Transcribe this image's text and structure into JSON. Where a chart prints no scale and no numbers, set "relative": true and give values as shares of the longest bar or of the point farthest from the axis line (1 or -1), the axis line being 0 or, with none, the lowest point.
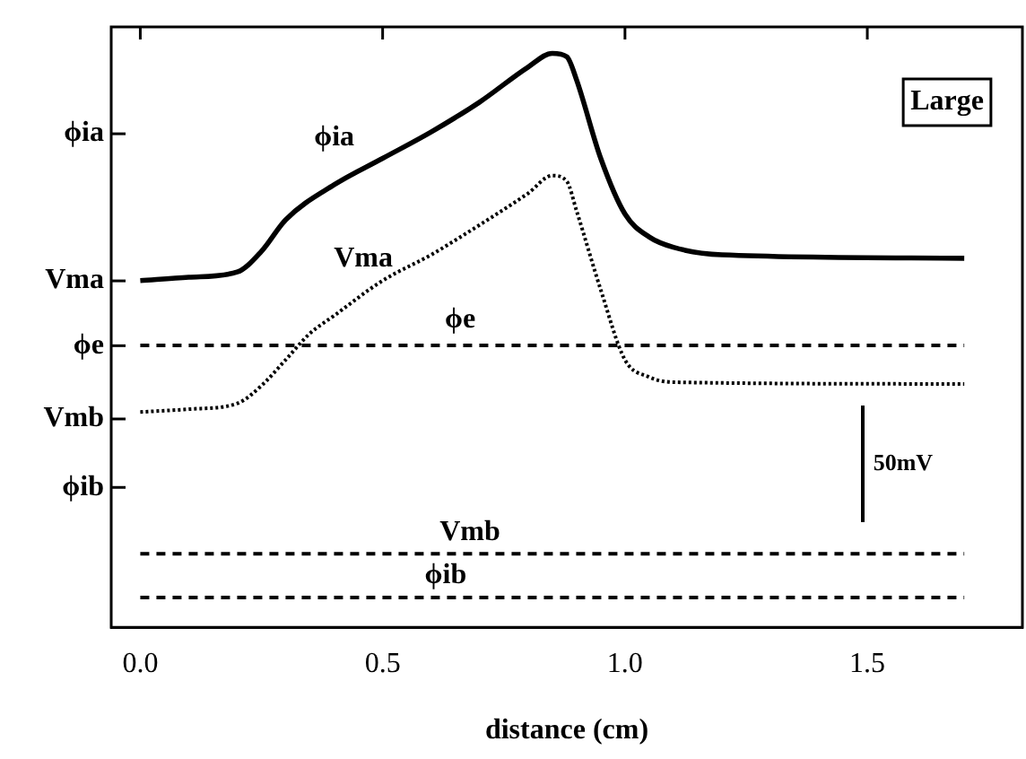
{
  "chart_data": {
    "type": "line",
    "relative": true,
    "xlabel": "distance (cm)",
    "xlim": [
      -0.06,
      1.82
    ],
    "xticks": [
      {
        "value": 0,
        "label": "0.0"
      },
      {
        "value": 0.5,
        "label": "0.5"
      },
      {
        "value": 1,
        "label": "1.0"
      },
      {
        "value": 1.5,
        "label": "1.5"
      }
    ],
    "grid": false,
    "legend": false,
    "marker": "none",
    "series": [
      {
        "name": "ϕia",
        "color": "#000000",
        "line_style": "solid",
        "x": [
          0,
          0.1,
          0.2,
          0.25,
          0.3,
          0.4,
          0.5,
          0.6,
          0.7,
          0.8,
          0.85,
          0.88,
          0.9,
          0.95,
          1.0,
          1.05,
          1.1,
          1.2,
          1.7
        ],
        "values": [
          0.604,
          0.61,
          0.619,
          0.655,
          0.71,
          0.771,
          0.817,
          0.863,
          0.915,
          0.976,
          1.0,
          0.994,
          0.954,
          0.817,
          0.72,
          0.68,
          0.662,
          0.649,
          0.643
        ]
      },
      {
        "name": "Vma",
        "color": "#000000",
        "line_style": "dotted",
        "x": [
          0,
          0.1,
          0.2,
          0.25,
          0.3,
          0.35,
          0.4,
          0.5,
          0.6,
          0.7,
          0.8,
          0.85,
          0.88,
          0.9,
          0.95,
          1.0,
          1.05,
          1.1,
          1.7
        ],
        "values": [
          0.375,
          0.38,
          0.39,
          0.421,
          0.466,
          0.512,
          0.543,
          0.604,
          0.649,
          0.701,
          0.756,
          0.787,
          0.777,
          0.726,
          0.588,
          0.466,
          0.436,
          0.427,
          0.424
        ]
      },
      {
        "name": "ϕe",
        "color": "#000000",
        "line_style": "dashed",
        "x": [
          0,
          1.7
        ],
        "values": [
          0.491,
          0.491
        ]
      },
      {
        "name": "Vmb",
        "color": "#000000",
        "line_style": "dashed",
        "x": [
          0,
          1.7
        ],
        "values": [
          0.128,
          0.128
        ]
      },
      {
        "name": "ϕib",
        "color": "#000000",
        "line_style": "dashed",
        "x": [
          0,
          1.7
        ],
        "values": [
          0.052,
          0.052
        ]
      }
    ],
    "annotations": [
      "ϕia",
      "Vma",
      "ϕe",
      "Vmb",
      "ϕib",
      "Large",
      "50mV"
    ]
  }
}
